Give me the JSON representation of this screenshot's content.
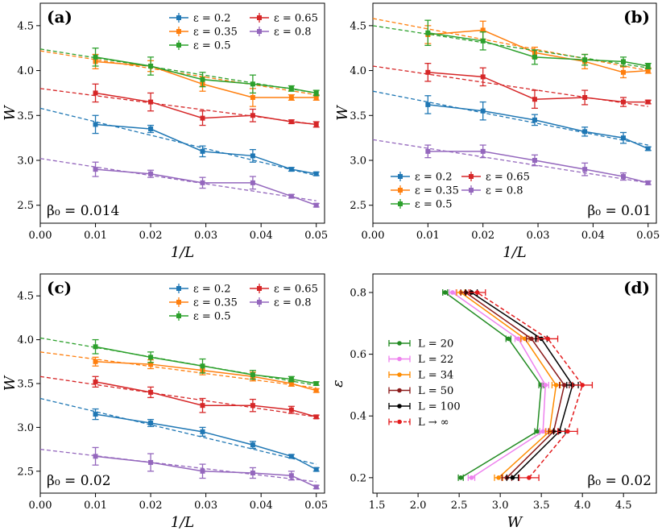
{
  "chart_data": [
    {
      "type": "line",
      "panel_label": "(a)",
      "beta_label": "β₀ = 0.014",
      "xlabel": "1/L",
      "ylabel": "W",
      "xlim": [
        0,
        0.0515
      ],
      "ylim": [
        2.3,
        4.75
      ],
      "xticks": [
        "0.00",
        "0.01",
        "0.02",
        "0.03",
        "0.04",
        "0.05"
      ],
      "yticks": [
        "2.5",
        "3.0",
        "3.5",
        "4.0",
        "4.5"
      ],
      "x": [
        0.01,
        0.02,
        0.0294,
        0.0385,
        0.0455,
        0.05
      ],
      "legend": "top-right",
      "series": [
        {
          "name": "ε = 0.2",
          "color": "#1f77b4",
          "values": [
            3.4,
            3.35,
            3.1,
            3.05,
            2.9,
            2.85
          ],
          "errors": [
            0.1,
            0.04,
            0.06,
            0.07,
            0.02,
            0.02
          ],
          "fit": [
            3.58,
            2.83
          ]
        },
        {
          "name": "ε = 0.35",
          "color": "#ff7f0e",
          "values": [
            4.1,
            4.05,
            3.85,
            3.7,
            3.7,
            3.7
          ],
          "errors": [
            0.08,
            0.06,
            0.08,
            0.1,
            0.03,
            0.03
          ],
          "fit": [
            4.22,
            3.73
          ]
        },
        {
          "name": "ε = 0.5",
          "color": "#2ca02c",
          "values": [
            4.15,
            4.05,
            3.9,
            3.85,
            3.8,
            3.75
          ],
          "errors": [
            0.1,
            0.1,
            0.08,
            0.1,
            0.03,
            0.03
          ],
          "fit": [
            4.24,
            3.75
          ]
        },
        {
          "name": "ε = 0.65",
          "color": "#d62728",
          "values": [
            3.75,
            3.65,
            3.47,
            3.5,
            3.43,
            3.4
          ],
          "errors": [
            0.1,
            0.1,
            0.08,
            0.07,
            0.02,
            0.03
          ],
          "fit": [
            3.8,
            3.4
          ]
        },
        {
          "name": "ε = 0.8",
          "color": "#9467bd",
          "values": [
            2.9,
            2.85,
            2.75,
            2.75,
            2.6,
            2.5
          ],
          "errors": [
            0.08,
            0.04,
            0.06,
            0.07,
            0.02,
            0.02
          ],
          "fit": [
            3.02,
            2.55
          ]
        }
      ]
    },
    {
      "type": "line",
      "panel_label": "(b)",
      "beta_label": "β₀ = 0.01",
      "xlabel": "1/L",
      "ylabel": "W",
      "xlim": [
        0,
        0.0515
      ],
      "ylim": [
        2.3,
        4.75
      ],
      "xticks": [
        "0.00",
        "0.01",
        "0.02",
        "0.03",
        "0.04",
        "0.05"
      ],
      "yticks": [
        "2.5",
        "3.0",
        "3.5",
        "4.0",
        "4.5"
      ],
      "x": [
        0.01,
        0.02,
        0.0294,
        0.0385,
        0.0455,
        0.05
      ],
      "legend": "bottom-left",
      "series": [
        {
          "name": "ε = 0.2",
          "color": "#1f77b4",
          "values": [
            3.62,
            3.55,
            3.45,
            3.32,
            3.25,
            3.13
          ],
          "errors": [
            0.1,
            0.1,
            0.06,
            0.05,
            0.06,
            0.02
          ],
          "fit": [
            3.77,
            3.17
          ]
        },
        {
          "name": "ε = 0.35",
          "color": "#ff7f0e",
          "values": [
            4.4,
            4.45,
            4.2,
            4.1,
            3.98,
            4.0
          ],
          "errors": [
            0.1,
            0.1,
            0.06,
            0.08,
            0.06,
            0.03
          ],
          "fit": [
            4.58,
            4.0
          ]
        },
        {
          "name": "ε = 0.5",
          "color": "#2ca02c",
          "values": [
            4.42,
            4.33,
            4.15,
            4.12,
            4.1,
            4.05
          ],
          "errors": [
            0.14,
            0.1,
            0.08,
            0.06,
            0.05,
            0.03
          ],
          "fit": [
            4.5,
            4.03
          ]
        },
        {
          "name": "ε = 0.65",
          "color": "#d62728",
          "values": [
            3.98,
            3.93,
            3.68,
            3.7,
            3.65,
            3.65
          ],
          "errors": [
            0.1,
            0.1,
            0.1,
            0.08,
            0.05,
            0.02
          ],
          "fit": [
            4.05,
            3.6
          ]
        },
        {
          "name": "ε = 0.8",
          "color": "#9467bd",
          "values": [
            3.1,
            3.1,
            3.0,
            2.9,
            2.82,
            2.75
          ],
          "errors": [
            0.07,
            0.07,
            0.06,
            0.07,
            0.04,
            0.02
          ],
          "fit": [
            3.23,
            2.75
          ]
        }
      ]
    },
    {
      "type": "line",
      "panel_label": "(c)",
      "beta_label": "β₀ = 0.02",
      "xlabel": "1/L",
      "ylabel": "W",
      "xlim": [
        0,
        0.0515
      ],
      "ylim": [
        2.25,
        4.75
      ],
      "xticks": [
        "0.00",
        "0.01",
        "0.02",
        "0.03",
        "0.04",
        "0.05"
      ],
      "yticks": [
        "2.5",
        "3.0",
        "3.5",
        "4.0",
        "4.5"
      ],
      "x": [
        0.01,
        0.02,
        0.0294,
        0.0385,
        0.0455,
        0.05
      ],
      "legend": "top-right",
      "series": [
        {
          "name": "ε = 0.2",
          "color": "#1f77b4",
          "values": [
            3.15,
            3.05,
            2.95,
            2.8,
            2.67,
            2.52
          ],
          "errors": [
            0.06,
            0.04,
            0.05,
            0.04,
            0.02,
            0.02
          ],
          "fit": [
            3.33,
            2.58
          ]
        },
        {
          "name": "ε = 0.35",
          "color": "#ff7f0e",
          "values": [
            3.75,
            3.72,
            3.65,
            3.58,
            3.5,
            3.42
          ],
          "errors": [
            0.05,
            0.05,
            0.05,
            0.05,
            0.03,
            0.02
          ],
          "fit": [
            3.86,
            3.45
          ]
        },
        {
          "name": "ε = 0.5",
          "color": "#2ca02c",
          "values": [
            3.92,
            3.8,
            3.7,
            3.6,
            3.55,
            3.5
          ],
          "errors": [
            0.08,
            0.06,
            0.08,
            0.05,
            0.03,
            0.02
          ],
          "fit": [
            4.02,
            3.48
          ]
        },
        {
          "name": "ε = 0.65",
          "color": "#d62728",
          "values": [
            3.52,
            3.4,
            3.25,
            3.25,
            3.2,
            3.12
          ],
          "errors": [
            0.06,
            0.06,
            0.08,
            0.07,
            0.04,
            0.02
          ],
          "fit": [
            3.58,
            3.12
          ]
        },
        {
          "name": "ε = 0.8",
          "color": "#9467bd",
          "values": [
            2.67,
            2.6,
            2.5,
            2.48,
            2.45,
            2.32
          ],
          "errors": [
            0.1,
            0.1,
            0.08,
            0.06,
            0.05,
            0.02
          ],
          "fit": [
            2.75,
            2.38
          ]
        }
      ]
    },
    {
      "type": "line",
      "panel_label": "(d)",
      "beta_label": "β₀ = 0.02",
      "xlabel": "W",
      "ylabel": "ε",
      "xlim": [
        1.45,
        4.9
      ],
      "ylim": [
        0.15,
        0.86
      ],
      "xticks": [
        "1.5",
        "2.0",
        "2.5",
        "3.0",
        "3.5",
        "4.0",
        "4.5"
      ],
      "yticks": [
        "0.2",
        "0.4",
        "0.6",
        "0.8"
      ],
      "y": [
        0.2,
        0.35,
        0.5,
        0.65,
        0.8
      ],
      "legend": "center-left",
      "series": [
        {
          "name": "L = 20",
          "color": "#228b22",
          "dashed": false,
          "w": [
            2.52,
            3.45,
            3.5,
            3.1,
            2.33
          ],
          "errors": [
            0.03,
            0.03,
            0.03,
            0.03,
            0.03
          ]
        },
        {
          "name": "L = 22",
          "color": "#ee82ee",
          "dashed": false,
          "w": [
            2.65,
            3.52,
            3.55,
            3.22,
            2.42
          ],
          "errors": [
            0.04,
            0.04,
            0.04,
            0.04,
            0.04
          ]
        },
        {
          "name": "L = 34",
          "color": "#ff8c00",
          "dashed": false,
          "w": [
            2.98,
            3.6,
            3.68,
            3.3,
            2.52
          ],
          "errors": [
            0.05,
            0.05,
            0.05,
            0.05,
            0.05
          ]
        },
        {
          "name": "L = 50",
          "color": "#8b1a1a",
          "dashed": false,
          "w": [
            3.08,
            3.65,
            3.78,
            3.38,
            2.58
          ],
          "errors": [
            0.06,
            0.06,
            0.06,
            0.06,
            0.06
          ]
        },
        {
          "name": "L = 100",
          "color": "#000000",
          "dashed": false,
          "w": [
            3.15,
            3.72,
            3.88,
            3.5,
            2.65
          ],
          "errors": [
            0.07,
            0.07,
            0.07,
            0.07,
            0.07
          ]
        },
        {
          "name": "L → ∞",
          "color": "#e31a1c",
          "dashed": true,
          "w": [
            3.35,
            3.82,
            4.0,
            3.58,
            2.72
          ],
          "errors": [
            0.12,
            0.12,
            0.12,
            0.12,
            0.1
          ]
        }
      ]
    }
  ]
}
